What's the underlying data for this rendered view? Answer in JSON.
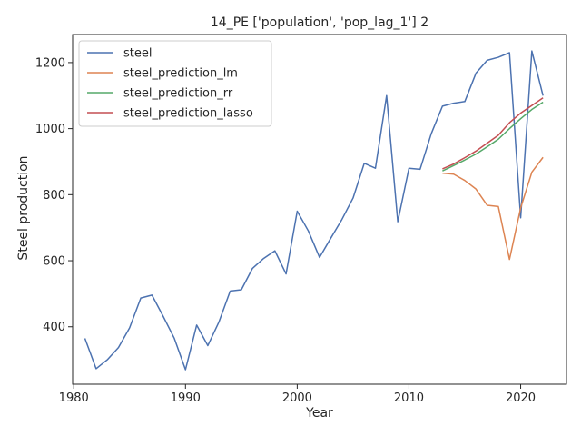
{
  "chart_data": {
    "type": "line",
    "title": "14_PE ['population', 'pop_lag_1'] 2",
    "xlabel": "Year",
    "ylabel": "Steel production",
    "xlim": [
      1979.9,
      2024.1
    ],
    "ylim": [
      226,
      1285
    ],
    "xticks": [
      1980,
      1990,
      2000,
      2010,
      2020
    ],
    "yticks": [
      400,
      600,
      800,
      1000,
      1200
    ],
    "grid": false,
    "legend_position": "top-left",
    "series": [
      {
        "name": "steel",
        "color": "#4c72b0",
        "x": [
          1981,
          1982,
          1983,
          1984,
          1985,
          1986,
          1987,
          1988,
          1989,
          1990,
          1991,
          1992,
          1993,
          1994,
          1995,
          1996,
          1997,
          1998,
          1999,
          2000,
          2001,
          2002,
          2003,
          2004,
          2005,
          2006,
          2007,
          2008,
          2009,
          2010,
          2011,
          2012,
          2013,
          2014,
          2015,
          2016,
          2017,
          2018,
          2019,
          2020,
          2021,
          2022
        ],
        "values": [
          365,
          273,
          300,
          337,
          397,
          487,
          496,
          432,
          365,
          270,
          405,
          343,
          415,
          508,
          512,
          577,
          607,
          630,
          560,
          750,
          690,
          610,
          668,
          725,
          790,
          895,
          880,
          1100,
          718,
          880,
          877,
          985,
          1068,
          1077,
          1082,
          1168,
          1207,
          1216,
          1230,
          730,
          1235,
          1100
        ]
      },
      {
        "name": "steel_prediction_lm",
        "color": "#dd8452",
        "x": [
          2013,
          2014,
          2015,
          2016,
          2017,
          2018,
          2019,
          2020,
          2021,
          2022
        ],
        "values": [
          865,
          862,
          843,
          817,
          768,
          764,
          604,
          760,
          868,
          913
        ]
      },
      {
        "name": "steel_prediction_rr",
        "color": "#55a868",
        "x": [
          2013,
          2014,
          2015,
          2016,
          2017,
          2018,
          2019,
          2020,
          2021,
          2022
        ],
        "values": [
          872,
          888,
          905,
          923,
          945,
          968,
          1000,
          1030,
          1058,
          1080
        ]
      },
      {
        "name": "steel_prediction_lasso",
        "color": "#c44e52",
        "x": [
          2013,
          2014,
          2015,
          2016,
          2017,
          2018,
          2019,
          2020,
          2021,
          2022
        ],
        "values": [
          878,
          893,
          912,
          932,
          956,
          980,
          1018,
          1047,
          1070,
          1093
        ]
      }
    ]
  }
}
